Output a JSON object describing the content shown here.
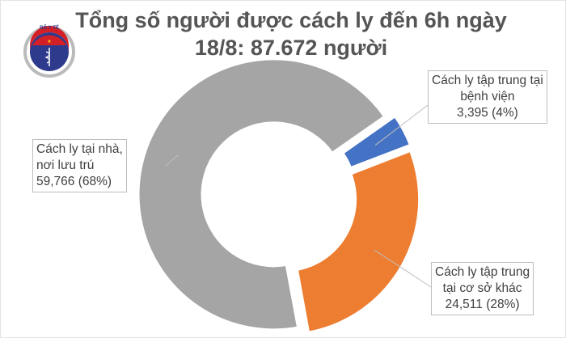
{
  "chart_data": {
    "type": "pie",
    "donut": true,
    "title": "Tổng số người được cách ly đến 6h ngày 18/8: 87.672 người",
    "title_lines": [
      "Tổng số người được cách ly đến 6h ngày",
      "18/8: 87.672 người"
    ],
    "series": [
      {
        "name": "Cách ly tập trung tại bệnh viện",
        "label_lines": [
          "Cách ly tập trung tại",
          "bệnh viện",
          "3,395 (4%)"
        ],
        "value": 3395,
        "percent": 4,
        "color": "#4472c4"
      },
      {
        "name": "Cách ly tập trung tại cơ sở khác",
        "label_lines": [
          "Cách ly tập trung",
          "tại cơ sở khác",
          "24,511 (28%)"
        ],
        "value": 24511,
        "percent": 28,
        "color": "#ed7d31"
      },
      {
        "name": "Cách ly tại nhà, nơi lưu trú",
        "label_lines": [
          "Cách ly tại nhà,",
          "nơi lưu trú",
          "59,766 (68%)"
        ],
        "value": 59766,
        "percent": 68,
        "color": "#a5a5a5"
      }
    ],
    "legend": "none",
    "start_angle_deg": 55
  },
  "logo": {
    "text_top": "BỘ Y TẾ",
    "text_bottom": "MINISTRY OF HEALTH"
  }
}
